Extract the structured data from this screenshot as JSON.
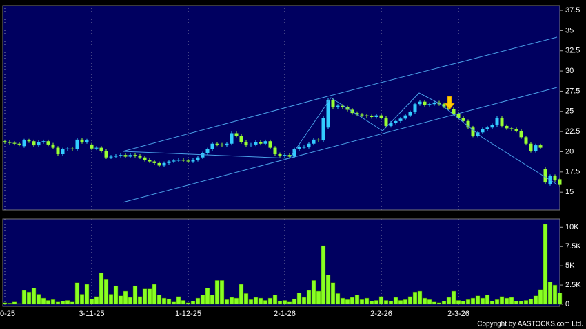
{
  "chart_data": [
    {
      "type": "candlestick",
      "categories": [
        "0-25",
        null,
        null,
        null,
        null,
        null,
        null,
        null,
        null,
        null,
        null,
        null,
        null,
        null,
        null,
        null,
        null,
        null,
        "3-11-25",
        null,
        null,
        null,
        null,
        null,
        null,
        null,
        null,
        null,
        null,
        null,
        null,
        null,
        null,
        null,
        null,
        null,
        null,
        null,
        "1-12-25",
        null,
        null,
        null,
        null,
        null,
        null,
        null,
        null,
        null,
        null,
        null,
        null,
        null,
        null,
        null,
        null,
        null,
        null,
        null,
        "2-1-26",
        null,
        null,
        null,
        null,
        null,
        null,
        null,
        null,
        null,
        null,
        null,
        null,
        null,
        null,
        null,
        null,
        null,
        null,
        null,
        "2-2-26",
        null,
        null,
        null,
        null,
        null,
        null,
        null,
        null,
        null,
        null,
        null,
        null,
        null,
        null,
        null,
        "2-3-26",
        null,
        null,
        null,
        null,
        null,
        null,
        null,
        null,
        null,
        null,
        null,
        null,
        null,
        null,
        null,
        null,
        null,
        null,
        null,
        null,
        null
      ],
      "open": [
        21.3,
        21.2,
        21.1,
        21.0,
        20.7,
        21.4,
        21.3,
        20.8,
        21.2,
        21.3,
        20.9,
        20.5,
        19.7,
        20.3,
        20.4,
        20.3,
        21.5,
        21.2,
        20.9,
        20.4,
        20.5,
        20.1,
        19.3,
        19.4,
        19.5,
        19.6,
        19.4,
        19.6,
        19.5,
        19.3,
        19.0,
        18.8,
        18.6,
        18.3,
        18.6,
        18.8,
        18.9,
        19.0,
        18.9,
        18.8,
        19.0,
        19.3,
        19.8,
        20.3,
        21.0,
        20.9,
        20.8,
        21.0,
        22.3,
        22.0,
        21.2,
        20.8,
        20.9,
        21.2,
        21.0,
        21.3,
        20.5,
        19.7,
        19.5,
        19.6,
        19.4,
        20.3,
        20.6,
        20.6,
        21.0,
        21.5,
        21.4,
        23.0,
        26.4,
        25.5,
        25.7,
        25.5,
        25.2,
        24.8,
        24.6,
        24.5,
        24.4,
        24.3,
        24.5,
        24.2,
        23.2,
        23.6,
        23.8,
        24.1,
        24.5,
        24.9,
        25.9,
        26.2,
        25.8,
        25.9,
        26.1,
        25.9,
        25.6,
        25.3,
        24.7,
        24.2,
        23.8,
        23.0,
        22.0,
        22.4,
        22.8,
        23.0,
        23.3,
        24.2,
        23.2,
        22.9,
        22.8,
        22.6,
        21.8,
        21.0,
        20.1,
        20.8,
        17.9,
        16.0,
        17.0,
        16.6
      ],
      "high": [
        21.5,
        21.4,
        21.3,
        21.2,
        21.6,
        21.6,
        21.5,
        21.4,
        21.5,
        21.5,
        21.1,
        20.7,
        20.5,
        20.6,
        20.6,
        21.7,
        21.7,
        21.6,
        21.1,
        20.7,
        20.7,
        20.3,
        19.6,
        19.7,
        19.8,
        19.8,
        19.8,
        19.8,
        19.7,
        19.5,
        19.2,
        19.0,
        18.8,
        18.8,
        19.0,
        19.1,
        19.2,
        19.2,
        19.1,
        19.2,
        19.5,
        20.0,
        20.5,
        21.2,
        21.2,
        21.1,
        21.2,
        22.5,
        22.5,
        22.2,
        21.4,
        21.1,
        21.4,
        21.4,
        21.5,
        21.5,
        20.7,
        19.9,
        19.8,
        19.8,
        20.5,
        20.8,
        20.8,
        21.2,
        21.7,
        21.7,
        24.4,
        26.6,
        26.6,
        25.9,
        25.9,
        25.7,
        25.4,
        25.0,
        24.8,
        24.7,
        24.6,
        24.7,
        24.7,
        24.4,
        23.8,
        24.0,
        24.3,
        24.7,
        25.1,
        26.1,
        26.4,
        26.4,
        26.1,
        26.3,
        26.3,
        26.1,
        25.8,
        25.5,
        24.9,
        24.4,
        24.0,
        23.2,
        22.6,
        23.0,
        23.2,
        23.5,
        24.4,
        24.4,
        23.4,
        23.1,
        23.0,
        22.8,
        22.0,
        21.2,
        21.0,
        21.0,
        18.1,
        17.2,
        17.2,
        16.8
      ],
      "low": [
        21.0,
        20.9,
        20.8,
        20.7,
        20.5,
        21.1,
        20.6,
        20.6,
        21.0,
        20.7,
        20.3,
        19.5,
        19.5,
        20.1,
        20.1,
        20.1,
        21.0,
        21.0,
        20.2,
        20.2,
        19.9,
        19.1,
        19.1,
        19.2,
        19.3,
        19.2,
        19.2,
        19.3,
        19.1,
        18.8,
        18.6,
        18.4,
        18.1,
        18.1,
        18.4,
        18.6,
        18.7,
        18.7,
        18.6,
        18.6,
        18.8,
        19.1,
        19.6,
        20.1,
        20.7,
        20.6,
        20.6,
        20.8,
        21.8,
        21.0,
        20.6,
        20.6,
        20.7,
        20.8,
        20.8,
        20.3,
        19.5,
        19.3,
        19.3,
        19.2,
        19.2,
        20.1,
        20.4,
        20.4,
        20.8,
        21.2,
        21.2,
        22.8,
        25.3,
        25.3,
        25.3,
        25.0,
        24.6,
        24.4,
        24.3,
        24.2,
        24.1,
        24.1,
        24.0,
        23.0,
        23.0,
        23.4,
        23.6,
        23.9,
        24.3,
        24.7,
        25.7,
        25.6,
        25.6,
        25.7,
        25.7,
        25.4,
        25.1,
        24.5,
        24.0,
        23.6,
        22.8,
        21.8,
        21.8,
        22.2,
        22.6,
        22.8,
        23.1,
        23.0,
        22.7,
        22.6,
        22.4,
        21.6,
        20.8,
        19.9,
        19.9,
        20.3,
        16.0,
        15.8,
        16.3,
        15.7
      ],
      "close": [
        21.2,
        21.1,
        21.0,
        20.9,
        21.4,
        21.3,
        20.8,
        21.2,
        21.3,
        20.9,
        20.5,
        19.7,
        20.3,
        20.4,
        20.3,
        21.5,
        21.2,
        21.4,
        20.4,
        20.5,
        20.1,
        19.3,
        19.4,
        19.5,
        19.6,
        19.4,
        19.6,
        19.5,
        19.3,
        19.0,
        18.8,
        18.6,
        18.3,
        18.6,
        18.8,
        18.9,
        19.0,
        18.9,
        18.8,
        19.0,
        19.3,
        19.8,
        20.3,
        21.0,
        20.9,
        20.8,
        21.0,
        22.3,
        22.0,
        21.2,
        20.8,
        20.9,
        21.2,
        21.0,
        21.3,
        20.5,
        19.7,
        19.5,
        19.6,
        19.4,
        20.3,
        20.6,
        20.6,
        21.0,
        21.5,
        21.4,
        24.2,
        26.4,
        25.5,
        25.7,
        25.5,
        25.2,
        24.8,
        24.6,
        24.5,
        24.4,
        24.3,
        24.5,
        24.2,
        23.2,
        23.6,
        23.8,
        24.1,
        24.5,
        24.9,
        25.9,
        26.2,
        25.8,
        25.9,
        26.1,
        25.9,
        25.6,
        25.3,
        24.7,
        24.2,
        23.8,
        23.0,
        22.0,
        22.4,
        22.8,
        23.0,
        23.3,
        24.2,
        23.2,
        22.9,
        22.8,
        22.6,
        21.8,
        21.0,
        20.1,
        20.8,
        20.5,
        16.2,
        17.0,
        16.5,
        15.9
      ],
      "up_color": "#33ccff",
      "down_color": "#99ff33",
      "ylim": [
        12.8,
        38.1
      ],
      "yticks": [
        15,
        17.5,
        20,
        22.5,
        25,
        27.5,
        30,
        32.5,
        35,
        37.5
      ]
    },
    {
      "type": "bar",
      "values": [
        200,
        150,
        300,
        100,
        1800,
        1600,
        2100,
        1300,
        800,
        500,
        600,
        300,
        400,
        500,
        300,
        2800,
        1300,
        2600,
        700,
        1000,
        4100,
        3200,
        1300,
        2400,
        1100,
        1700,
        900,
        2400,
        1000,
        2000,
        2000,
        2600,
        1200,
        800,
        700,
        300,
        1000,
        500,
        200,
        400,
        800,
        1200,
        2100,
        1200,
        3100,
        3100,
        600,
        900,
        800,
        2600,
        1400,
        600,
        900,
        800,
        500,
        800,
        1200,
        400,
        500,
        300,
        700,
        1500,
        900,
        1800,
        3100,
        1700,
        7600,
        3800,
        2800,
        1400,
        800,
        600,
        900,
        1200,
        600,
        800,
        400,
        500,
        1000,
        500,
        400,
        900,
        500,
        600,
        1000,
        1600,
        1700,
        800,
        600,
        300,
        200,
        400,
        900,
        1700,
        500,
        400,
        600,
        800,
        1100,
        800,
        1200,
        400,
        600,
        1000,
        800,
        900,
        400,
        400,
        500,
        700,
        1100,
        1900,
        10400,
        2900,
        2500,
        1500
      ],
      "color": "#88ff22",
      "ylim": [
        0,
        11100
      ],
      "yticks": [
        0,
        {
          "value": 2500,
          "label": "2.5K"
        },
        {
          "value": 5000,
          "label": "5K"
        },
        {
          "value": 7500,
          "label": "7.5K"
        },
        {
          "value": 10000,
          "label": "10K"
        }
      ]
    }
  ],
  "footer": "Copyright by AASTOCKS.com Ltd."
}
